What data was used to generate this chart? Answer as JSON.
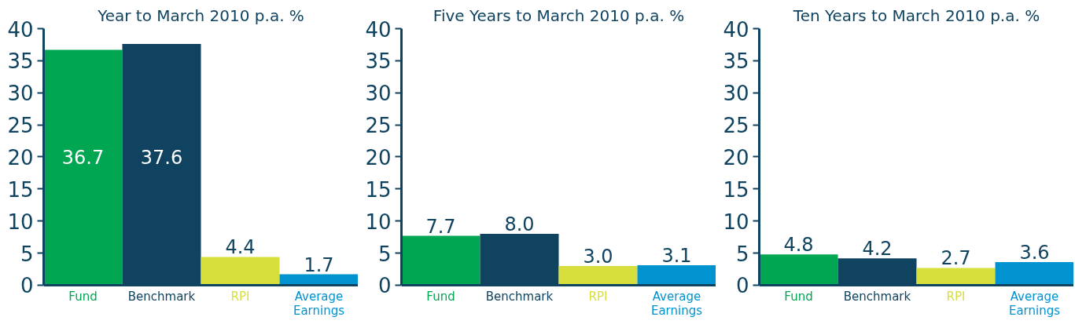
{
  "chart_data": [
    {
      "type": "bar",
      "title": "Year to March 2010 p.a. %",
      "categories": [
        "Fund",
        "Benchmark",
        "RPI",
        "Average Earnings"
      ],
      "values": [
        36.7,
        37.6,
        4.4,
        1.7
      ],
      "value_labels": [
        "36.7",
        "37.6",
        "4.4",
        "1.7"
      ],
      "colors": [
        "#00a651",
        "#0f4360",
        "#d6df3c",
        "#0093d0"
      ],
      "ylim": [
        0,
        40
      ],
      "yticks": [
        0,
        5,
        10,
        15,
        20,
        25,
        30,
        35,
        40
      ],
      "grid": false
    },
    {
      "type": "bar",
      "title": "Five Years to March 2010 p.a. %",
      "categories": [
        "Fund",
        "Benchmark",
        "RPI",
        "Average Earnings"
      ],
      "values": [
        7.7,
        8.0,
        3.0,
        3.1
      ],
      "value_labels": [
        "7.7",
        "8.0",
        "3.0",
        "3.1"
      ],
      "colors": [
        "#00a651",
        "#0f4360",
        "#d6df3c",
        "#0093d0"
      ],
      "ylim": [
        0,
        40
      ],
      "yticks": [
        0,
        5,
        10,
        15,
        20,
        25,
        30,
        35,
        40
      ],
      "grid": false
    },
    {
      "type": "bar",
      "title": "Ten Years to March 2010 p.a. %",
      "categories": [
        "Fund",
        "Benchmark",
        "RPI",
        "Average Earnings"
      ],
      "values": [
        4.8,
        4.2,
        2.7,
        3.6
      ],
      "value_labels": [
        "4.8",
        "4.2",
        "2.7",
        "3.6"
      ],
      "colors": [
        "#00a651",
        "#0f4360",
        "#d6df3c",
        "#0093d0"
      ],
      "ylim": [
        0,
        40
      ],
      "yticks": [
        0,
        5,
        10,
        15,
        20,
        25,
        30,
        35,
        40
      ],
      "grid": false
    }
  ]
}
